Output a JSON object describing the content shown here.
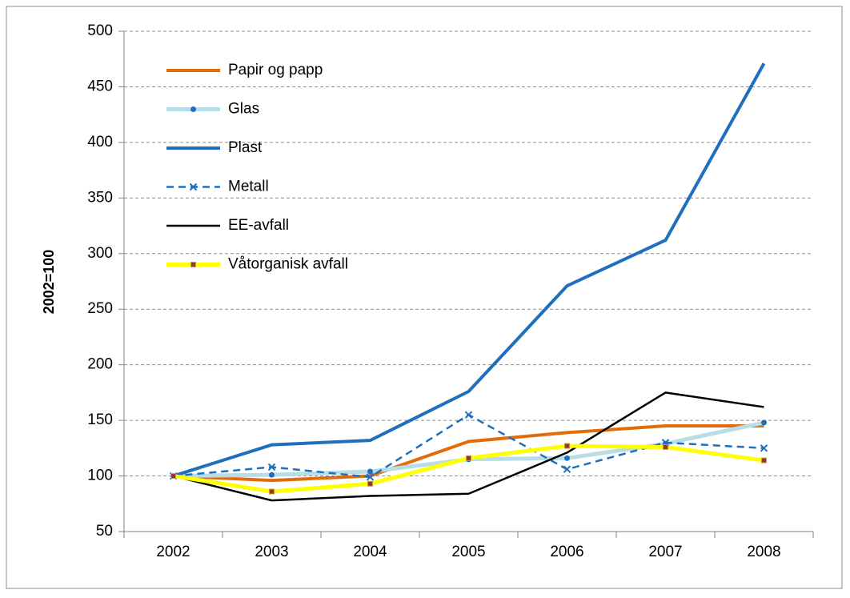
{
  "chart_data": {
    "type": "line",
    "y_label": "2002=100",
    "categories": [
      "2002",
      "2003",
      "2004",
      "2005",
      "2006",
      "2007",
      "2008"
    ],
    "series": [
      {
        "name": "Papir og papp",
        "color": "#e36c0a",
        "values": [
          100,
          96,
          100,
          131,
          139,
          145,
          145
        ]
      },
      {
        "name": "Glas",
        "color": "#b7dde8",
        "values": [
          100,
          101,
          104,
          115,
          116,
          129,
          148
        ]
      },
      {
        "name": "Plast",
        "color": "#1f6fbf",
        "values": [
          100,
          128,
          132,
          176,
          271,
          312,
          471
        ]
      },
      {
        "name": "Metall",
        "color": "#1f6fbf",
        "values": [
          100,
          108,
          99,
          155,
          106,
          130,
          125
        ]
      },
      {
        "name": "EE-avfall",
        "color": "#000000",
        "values": [
          100,
          78,
          82,
          84,
          121,
          175,
          162
        ]
      },
      {
        "name": "Våtorganisk avfall",
        "color": "#ffff00",
        "values": [
          100,
          86,
          93,
          116,
          127,
          126,
          114
        ]
      }
    ],
    "ylim": [
      50,
      500
    ],
    "yticks": [
      50,
      100,
      150,
      200,
      250,
      300,
      350,
      400,
      450,
      500
    ],
    "grid": true,
    "legend": "upper left"
  }
}
